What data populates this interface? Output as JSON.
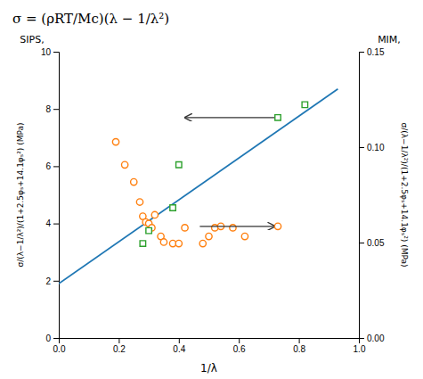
{
  "chart_data": {
    "type": "scatter",
    "title": "σ = (ρRT/Mc)(λ − 1/λ²)",
    "xlabel": "1/λ",
    "ylabel": [
      "SIPS,",
      "σ/(λ−1/λ²)/(1+2.5φₛ+14.1φₛ²) (MPa)"
    ],
    "y2label": [
      "MIM,",
      "σ/(λ−1/λ²)/(1+2.5φₛ+14.1φₛ²) (MPa)"
    ],
    "xlim": [
      0,
      1
    ],
    "xticks": [
      {
        "value": 0,
        "label": "0.0"
      },
      0.2,
      0.4,
      0.6,
      0.8,
      {
        "value": 1,
        "label": "1.0"
      }
    ],
    "ylim": [
      0,
      10
    ],
    "yticks": [
      0,
      2,
      4,
      6,
      8,
      10
    ],
    "y2lim": [
      0.0,
      0.15
    ],
    "y2ticks": [
      {
        "value": 0.0,
        "label": "0.00"
      },
      0.05,
      {
        "value": 0.1,
        "label": "0.10"
      },
      0.15
    ],
    "series": [
      {
        "type": "line",
        "x": [
          0,
          0.93
        ],
        "values": [
          1.9,
          8.7
        ]
      },
      {
        "type": "scatter",
        "marker": "circle",
        "x": [
          0.19,
          0.22,
          0.25,
          0.27,
          0.28,
          0.29,
          0.3,
          0.31,
          0.32,
          0.34,
          0.35,
          0.38,
          0.4,
          0.42,
          0.48,
          0.5,
          0.52,
          0.54,
          0.58,
          0.62
        ],
        "values": [
          6.85,
          6.05,
          5.45,
          4.75,
          4.25,
          4.05,
          4.0,
          3.85,
          4.3,
          3.55,
          3.35,
          3.3,
          3.3,
          3.85,
          3.3,
          3.55,
          3.85,
          3.9,
          3.85,
          3.55
        ]
      },
      {
        "type": "scatter",
        "marker": "square",
        "x": [
          0.28,
          0.3,
          0.38,
          0.4,
          0.82
        ],
        "values": [
          3.3,
          3.75,
          4.55,
          6.05,
          8.15
        ]
      }
    ],
    "arrows": [
      {
        "x_start": 0.72,
        "x_end": 0.42,
        "y": 7.7,
        "marker": "square",
        "marker_x": 0.73,
        "marker_y": 7.7
      },
      {
        "x_start": 0.47,
        "x_end": 0.72,
        "y": 3.9,
        "marker": "circle",
        "marker_x": 0.73,
        "marker_y": 3.9
      }
    ]
  }
}
